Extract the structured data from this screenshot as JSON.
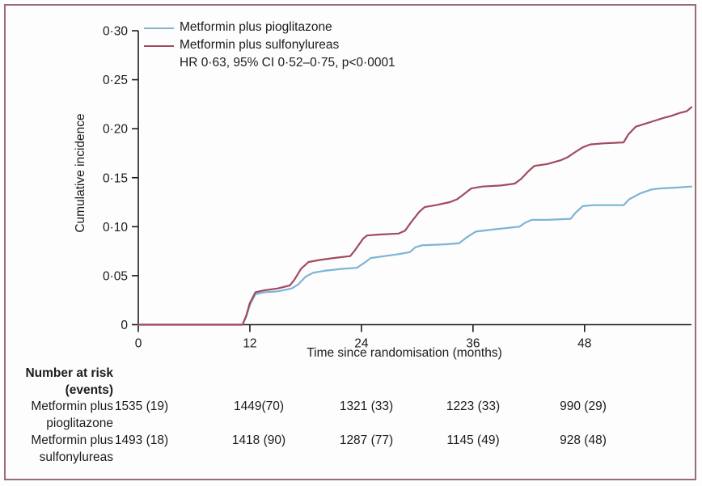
{
  "figure": {
    "border_color": "#9c6b78",
    "background": "#fdfdfd",
    "series_colors": {
      "pioglitazone": "#7db4d6",
      "sulfonylureas": "#a04b5e"
    }
  },
  "legend": {
    "items": [
      {
        "id": "pioglitazone",
        "label": "Metformin plus pioglitazone",
        "color": "#7db4d6"
      },
      {
        "id": "sulfonylureas",
        "label": "Metformin plus sulfonylureas",
        "color": "#a04b5e"
      }
    ],
    "annotation": "HR 0·63, 95% CI 0·52–0·75, p<0·0001"
  },
  "chart_data": {
    "type": "line",
    "title": "",
    "xlabel": "Time since randomisation (months)",
    "ylabel": "Cumulative incidence",
    "xlim": [
      0,
      59.5
    ],
    "ylim": [
      0,
      0.3
    ],
    "grid": false,
    "legend_position": "top-left-inside",
    "x_ticks": [
      0,
      12,
      24,
      36,
      48
    ],
    "y_ticks": [
      {
        "value": 0,
        "label": "0"
      },
      {
        "value": 0.05,
        "label": "0·05"
      },
      {
        "value": 0.1,
        "label": "0·10"
      },
      {
        "value": 0.15,
        "label": "0·15"
      },
      {
        "value": 0.2,
        "label": "0·20"
      },
      {
        "value": 0.25,
        "label": "0·25"
      },
      {
        "value": 0.3,
        "label": "0·30"
      }
    ],
    "annotation": "HR 0·63, 95% CI 0·52–0·75, p<0·0001",
    "series": [
      {
        "id": "pioglitazone",
        "name": "Metformin plus pioglitazone",
        "color": "#7db4d6",
        "points": [
          [
            0,
            0
          ],
          [
            11.2,
            0
          ],
          [
            11.6,
            0.008
          ],
          [
            12,
            0.02
          ],
          [
            12.6,
            0.031
          ],
          [
            13.5,
            0.033
          ],
          [
            15,
            0.034
          ],
          [
            16.5,
            0.037
          ],
          [
            17.2,
            0.041
          ],
          [
            18,
            0.049
          ],
          [
            18.8,
            0.053
          ],
          [
            20,
            0.055
          ],
          [
            22,
            0.057
          ],
          [
            23.5,
            0.058
          ],
          [
            24.3,
            0.063
          ],
          [
            25,
            0.068
          ],
          [
            26.5,
            0.07
          ],
          [
            28,
            0.072
          ],
          [
            29.2,
            0.074
          ],
          [
            29.8,
            0.079
          ],
          [
            30.5,
            0.081
          ],
          [
            33,
            0.082
          ],
          [
            34.5,
            0.083
          ],
          [
            35.3,
            0.089
          ],
          [
            36.3,
            0.095
          ],
          [
            38,
            0.097
          ],
          [
            40,
            0.099
          ],
          [
            41,
            0.1
          ],
          [
            41.6,
            0.104
          ],
          [
            42.3,
            0.107
          ],
          [
            44,
            0.107
          ],
          [
            46.5,
            0.108
          ],
          [
            47,
            0.114
          ],
          [
            47.8,
            0.121
          ],
          [
            49,
            0.122
          ],
          [
            52.2,
            0.122
          ],
          [
            52.8,
            0.128
          ],
          [
            54,
            0.134
          ],
          [
            55.2,
            0.138
          ],
          [
            56,
            0.139
          ],
          [
            58,
            0.14
          ],
          [
            59.5,
            0.141
          ]
        ]
      },
      {
        "id": "sulfonylureas",
        "name": "Metformin plus sulfonylureas",
        "color": "#a04b5e",
        "points": [
          [
            0,
            0
          ],
          [
            11.2,
            0
          ],
          [
            11.6,
            0.009
          ],
          [
            12,
            0.022
          ],
          [
            12.6,
            0.033
          ],
          [
            13.5,
            0.035
          ],
          [
            15,
            0.037
          ],
          [
            16.3,
            0.04
          ],
          [
            16.8,
            0.046
          ],
          [
            17.5,
            0.057
          ],
          [
            18.3,
            0.064
          ],
          [
            19.5,
            0.066
          ],
          [
            21,
            0.068
          ],
          [
            22.8,
            0.07
          ],
          [
            23.3,
            0.076
          ],
          [
            24.2,
            0.088
          ],
          [
            24.6,
            0.091
          ],
          [
            26,
            0.092
          ],
          [
            28,
            0.093
          ],
          [
            28.7,
            0.096
          ],
          [
            29.3,
            0.104
          ],
          [
            30.2,
            0.115
          ],
          [
            30.8,
            0.12
          ],
          [
            32,
            0.122
          ],
          [
            33.5,
            0.125
          ],
          [
            34.3,
            0.128
          ],
          [
            35,
            0.133
          ],
          [
            35.8,
            0.139
          ],
          [
            37,
            0.141
          ],
          [
            39,
            0.142
          ],
          [
            40.5,
            0.144
          ],
          [
            41.2,
            0.149
          ],
          [
            42,
            0.157
          ],
          [
            42.6,
            0.162
          ],
          [
            44,
            0.164
          ],
          [
            45.5,
            0.168
          ],
          [
            46.2,
            0.171
          ],
          [
            46.8,
            0.175
          ],
          [
            47.8,
            0.181
          ],
          [
            48.6,
            0.184
          ],
          [
            50,
            0.185
          ],
          [
            52.2,
            0.186
          ],
          [
            52.7,
            0.194
          ],
          [
            53.5,
            0.202
          ],
          [
            54.5,
            0.205
          ],
          [
            55.5,
            0.208
          ],
          [
            56.5,
            0.211
          ],
          [
            57.3,
            0.213
          ],
          [
            58.2,
            0.216
          ],
          [
            59,
            0.218
          ],
          [
            59.5,
            0.222
          ]
        ]
      }
    ]
  },
  "risk_table": {
    "header_lines": [
      "Number at risk",
      "(events)"
    ],
    "rows": [
      {
        "label_lines": [
          "Metformin plus",
          "pioglitazone"
        ],
        "values": [
          "1535 (19)",
          "1449(70)",
          "1321 (33)",
          "1223 (33)",
          "990 (29)"
        ]
      },
      {
        "label_lines": [
          "Metformin plus",
          "sulfonylureas"
        ],
        "values": [
          "1493 (18)",
          "1418 (90)",
          "1287 (77)",
          "1145 (49)",
          "928 (48)"
        ]
      }
    ]
  }
}
